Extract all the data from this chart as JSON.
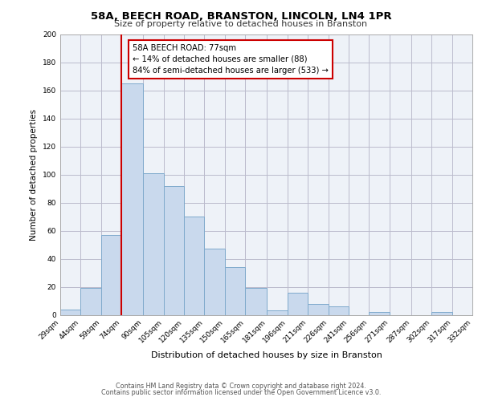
{
  "title": "58A, BEECH ROAD, BRANSTON, LINCOLN, LN4 1PR",
  "subtitle": "Size of property relative to detached houses in Branston",
  "xlabel": "Distribution of detached houses by size in Branston",
  "ylabel": "Number of detached properties",
  "bin_edges": [
    29,
    44,
    59,
    74,
    90,
    105,
    120,
    135,
    150,
    165,
    181,
    196,
    211,
    226,
    241,
    256,
    271,
    287,
    302,
    317,
    332
  ],
  "bin_labels": [
    "29sqm",
    "44sqm",
    "59sqm",
    "74sqm",
    "90sqm",
    "105sqm",
    "120sqm",
    "135sqm",
    "150sqm",
    "165sqm",
    "181sqm",
    "196sqm",
    "211sqm",
    "226sqm",
    "241sqm",
    "256sqm",
    "271sqm",
    "287sqm",
    "302sqm",
    "317sqm",
    "332sqm"
  ],
  "counts": [
    4,
    19,
    57,
    165,
    101,
    92,
    70,
    47,
    34,
    19,
    3,
    16,
    8,
    6,
    0,
    2,
    0,
    0,
    2,
    0
  ],
  "bar_facecolor": "#c9d9ed",
  "bar_edgecolor": "#7faacc",
  "vline_x": 74,
  "vline_color": "#cc0000",
  "annotation_line1": "58A BEECH ROAD: 77sqm",
  "annotation_line2": "← 14% of detached houses are smaller (88)",
  "annotation_line3": "84% of semi-detached houses are larger (533) →",
  "box_edgecolor": "#cc0000",
  "ylim": [
    0,
    200
  ],
  "yticks": [
    0,
    20,
    40,
    60,
    80,
    100,
    120,
    140,
    160,
    180,
    200
  ],
  "grid_color": "#bbbbcc",
  "background_color": "#eef2f8",
  "footer_line1": "Contains HM Land Registry data © Crown copyright and database right 2024.",
  "footer_line2": "Contains public sector information licensed under the Open Government Licence v3.0."
}
